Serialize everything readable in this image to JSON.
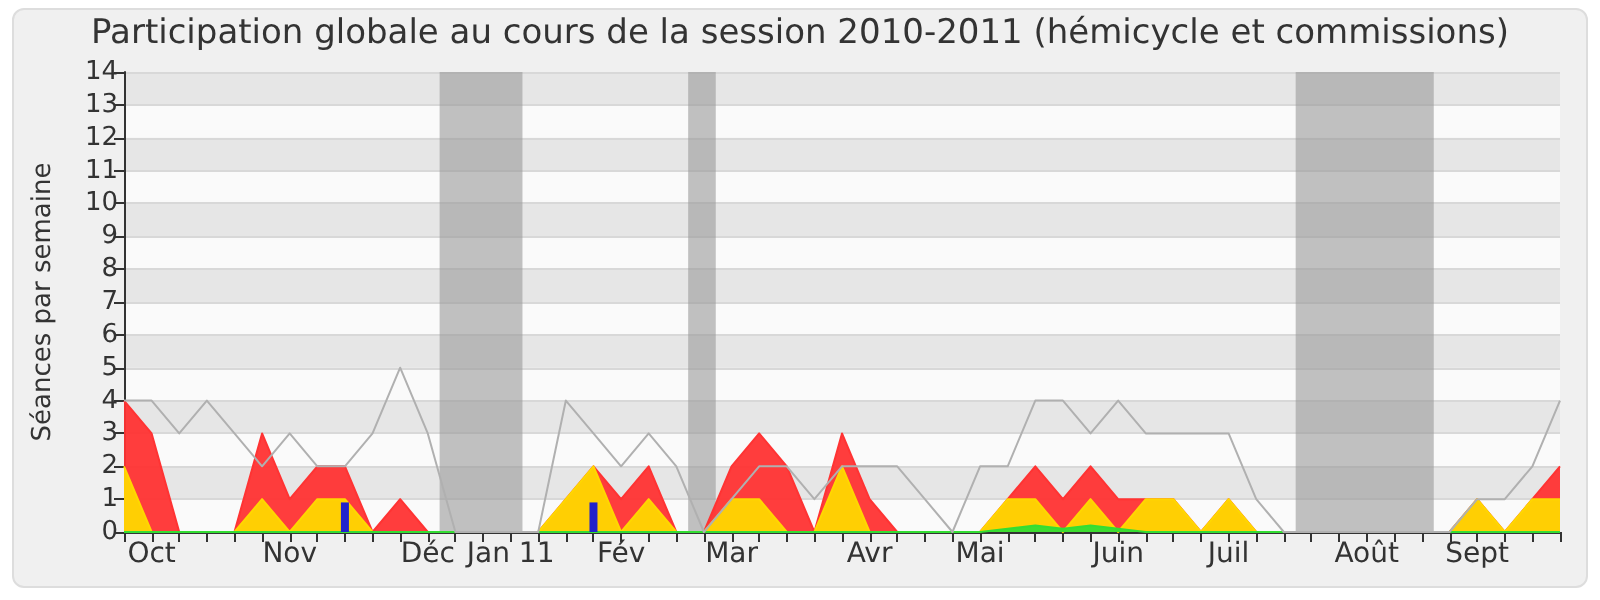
{
  "chart_data": {
    "type": "area",
    "title": "Participation globale au cours de la session 2010-2011 (hémicycle et commissions)",
    "ylabel": "Séances par semaine",
    "x": [
      "2010-09-29",
      "2010-10-06",
      "2010-10-13",
      "2010-10-20",
      "2010-10-27",
      "2010-11-03",
      "2010-11-10",
      "2010-11-17",
      "2010-11-24",
      "2010-12-01",
      "2010-12-08",
      "2010-12-15",
      "2010-12-22",
      "2010-12-29",
      "2011-01-05",
      "2011-01-12",
      "2011-01-19",
      "2011-01-26",
      "2011-02-02",
      "2011-02-09",
      "2011-02-16",
      "2011-02-23",
      "2011-03-02",
      "2011-03-09",
      "2011-03-16",
      "2011-03-23",
      "2011-03-30",
      "2011-04-06",
      "2011-04-13",
      "2011-04-20",
      "2011-04-27",
      "2011-05-04",
      "2011-05-11",
      "2011-05-18",
      "2011-05-25",
      "2011-06-01",
      "2011-06-08",
      "2011-06-15",
      "2011-06-22",
      "2011-06-29",
      "2011-07-06",
      "2011-07-13",
      "2011-07-20",
      "2011-07-27",
      "2011-08-03",
      "2011-08-10",
      "2011-08-17",
      "2011-08-24",
      "2011-08-31",
      "2011-09-07",
      "2011-09-14",
      "2011-09-21",
      "2011-09-28"
    ],
    "xlim": [
      "2010-09-29",
      "2011-09-28"
    ],
    "xticks": [
      {
        "value": "2010-09-29",
        "label": null
      },
      {
        "value": "2010-10-06",
        "label": "Oct"
      },
      {
        "value": "2010-10-13",
        "label": null
      },
      {
        "value": "2010-10-20",
        "label": null
      },
      {
        "value": "2010-10-27",
        "label": null
      },
      {
        "value": "2010-11-03",
        "label": null
      },
      {
        "value": "2010-11-10",
        "label": "Nov"
      },
      {
        "value": "2010-11-17",
        "label": null
      },
      {
        "value": "2010-11-24",
        "label": null
      },
      {
        "value": "2010-12-01",
        "label": null
      },
      {
        "value": "2010-12-08",
        "label": null
      },
      {
        "value": "2010-12-15",
        "label": "Déc"
      },
      {
        "value": "2010-12-22",
        "label": null
      },
      {
        "value": "2010-12-29",
        "label": null
      },
      {
        "value": "2011-01-05",
        "label": "Jan 11"
      },
      {
        "value": "2011-01-12",
        "label": null
      },
      {
        "value": "2011-01-19",
        "label": null
      },
      {
        "value": "2011-01-26",
        "label": null
      },
      {
        "value": "2011-02-02",
        "label": "Fév"
      },
      {
        "value": "2011-02-09",
        "label": null
      },
      {
        "value": "2011-02-16",
        "label": null
      },
      {
        "value": "2011-02-23",
        "label": null
      },
      {
        "value": "2011-03-02",
        "label": "Mar"
      },
      {
        "value": "2011-03-09",
        "label": null
      },
      {
        "value": "2011-03-16",
        "label": null
      },
      {
        "value": "2011-03-23",
        "label": null
      },
      {
        "value": "2011-03-30",
        "label": null
      },
      {
        "value": "2011-04-06",
        "label": "Avr"
      },
      {
        "value": "2011-04-13",
        "label": null
      },
      {
        "value": "2011-04-20",
        "label": null
      },
      {
        "value": "2011-04-27",
        "label": null
      },
      {
        "value": "2011-05-04",
        "label": "Mai"
      },
      {
        "value": "2011-05-11",
        "label": null
      },
      {
        "value": "2011-05-18",
        "label": null
      },
      {
        "value": "2011-05-25",
        "label": null
      },
      {
        "value": "2011-06-01",
        "label": null
      },
      {
        "value": "2011-06-08",
        "label": "Juin"
      },
      {
        "value": "2011-06-15",
        "label": null
      },
      {
        "value": "2011-06-22",
        "label": null
      },
      {
        "value": "2011-06-29",
        "label": null
      },
      {
        "value": "2011-07-06",
        "label": "Juil"
      },
      {
        "value": "2011-07-13",
        "label": null
      },
      {
        "value": "2011-07-20",
        "label": null
      },
      {
        "value": "2011-07-27",
        "label": null
      },
      {
        "value": "2011-08-03",
        "label": null
      },
      {
        "value": "2011-08-10",
        "label": "Août"
      },
      {
        "value": "2011-08-17",
        "label": null
      },
      {
        "value": "2011-08-24",
        "label": null
      },
      {
        "value": "2011-08-31",
        "label": null
      },
      {
        "value": "2011-09-07",
        "label": "Sept"
      },
      {
        "value": "2011-09-14",
        "label": null
      },
      {
        "value": "2011-09-21",
        "label": null
      },
      {
        "value": "2011-09-28",
        "label": null
      }
    ],
    "ylim": [
      0,
      14
    ],
    "yticks": [
      0,
      1,
      2,
      3,
      4,
      5,
      6,
      7,
      8,
      9,
      10,
      11,
      12,
      13,
      14
    ],
    "grid": "y",
    "bands": [
      {
        "axis": "x",
        "from": "2010-12-18",
        "to": "2011-01-08",
        "color": "#999999"
      },
      {
        "axis": "x",
        "from": "2011-02-19",
        "to": "2011-02-26",
        "color": "#999999"
      },
      {
        "axis": "x",
        "from": "2011-07-23",
        "to": "2011-08-27",
        "color": "#999999"
      }
    ],
    "series": [
      {
        "color": "#ff3333",
        "values": [
          4,
          3,
          0,
          0,
          0,
          3,
          1,
          2,
          2,
          0,
          1,
          0,
          0,
          0,
          0,
          0,
          1,
          2,
          1,
          2,
          0,
          0,
          2,
          3,
          2,
          0,
          3,
          1,
          0,
          0,
          0,
          0,
          1,
          2,
          1,
          2,
          1,
          1,
          1,
          0,
          1,
          0,
          0,
          0,
          0,
          0,
          0,
          0,
          0,
          1,
          0,
          1,
          2
        ]
      },
      {
        "color": "#ffd700",
        "values": [
          2,
          0,
          0,
          0,
          0,
          1,
          0,
          1,
          1,
          0,
          0,
          0,
          0,
          0,
          0,
          0,
          1,
          2,
          0,
          1,
          0,
          0,
          1,
          1,
          0,
          0,
          2,
          0,
          0,
          0,
          0,
          0,
          1,
          1,
          0,
          1,
          0,
          1,
          1,
          0,
          1,
          0,
          0,
          0,
          0,
          0,
          0,
          0,
          0,
          1,
          0,
          1,
          1
        ]
      },
      {
        "color": "#33dd33",
        "values": [
          0,
          0,
          0,
          0,
          0,
          0,
          0,
          0,
          0,
          0,
          0,
          0,
          0,
          0,
          0,
          0,
          0,
          0,
          0,
          0,
          0,
          0,
          0,
          0,
          0,
          0,
          0,
          0,
          0,
          0,
          0,
          0,
          0.1,
          0.2,
          0.1,
          0.2,
          0.1,
          0,
          0,
          0,
          0,
          0,
          0,
          0,
          0,
          0,
          0,
          0,
          0,
          0,
          0,
          0,
          0
        ]
      },
      {
        "type": "bar",
        "color": "#2222cc",
        "values": [
          null,
          null,
          null,
          null,
          null,
          null,
          null,
          null,
          0.9,
          null,
          null,
          null,
          null,
          null,
          null,
          null,
          null,
          0.9,
          null,
          null,
          null,
          null,
          null,
          null,
          null,
          null,
          null,
          null,
          null,
          null,
          null,
          null,
          null,
          null,
          null,
          null,
          null,
          null,
          null,
          null,
          null,
          null,
          null,
          null,
          null,
          null,
          null,
          null,
          null,
          null,
          null,
          null,
          null
        ]
      },
      {
        "type": "line",
        "color": "#b0b0b0",
        "values": [
          4,
          4,
          3,
          4,
          3,
          2,
          3,
          2,
          2,
          3,
          5,
          3,
          0,
          0,
          0,
          0,
          4,
          3,
          2,
          3,
          2,
          0,
          1,
          2,
          2,
          1,
          2,
          2,
          2,
          1,
          0,
          2,
          2,
          4,
          4,
          3,
          4,
          3,
          3,
          3,
          3,
          1,
          0,
          0,
          0,
          0,
          0,
          0,
          0,
          1,
          1,
          2,
          4
        ]
      }
    ]
  }
}
